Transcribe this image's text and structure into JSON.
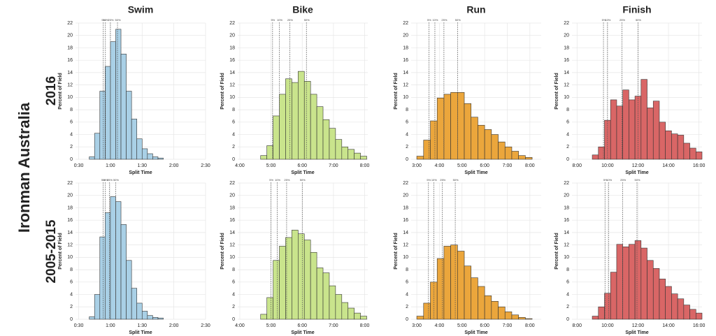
{
  "title": "Ironman Australia",
  "rows": [
    "2016",
    "2005-2015"
  ],
  "columns": [
    "Swim",
    "Bike",
    "Run",
    "Finish"
  ],
  "chart_data": [
    {
      "type": "histogram",
      "xlabel": "Split Time",
      "ylabel": "Percent of Field",
      "color": "#a9d0e6",
      "grid": true,
      "bins": [
        40,
        45,
        50,
        55,
        60,
        65,
        70,
        75,
        80,
        85,
        90,
        95,
        100,
        105,
        110
      ],
      "values": [
        0.4,
        4.2,
        11,
        15,
        19,
        21,
        17,
        11,
        6.5,
        3.3,
        1.7,
        0.9,
        0.4,
        0.2
      ],
      "xlim": [
        27,
        150
      ],
      "ylim": [
        0,
        22
      ],
      "xticks": [
        {
          "value": 30,
          "label": "0:30"
        },
        {
          "value": 60,
          "label": "1:00"
        },
        {
          "value": 90,
          "label": "1:30"
        },
        {
          "value": 120,
          "label": "2:00"
        },
        {
          "value": 150,
          "label": "2:30"
        }
      ],
      "yticks": [
        0,
        2,
        4,
        6,
        8,
        10,
        12,
        14,
        16,
        18,
        20,
        22
      ],
      "percentiles": [
        {
          "label": "5%",
          "value": 53.3
        },
        {
          "label": "10%",
          "value": 55.3
        },
        {
          "label": "25%",
          "value": 60
        },
        {
          "label": "50%",
          "value": 66.7
        }
      ]
    },
    {
      "type": "histogram",
      "xlabel": "Split Time",
      "ylabel": "Percent of Field",
      "color": "#c9e48c",
      "grid": true,
      "bins": [
        280,
        292,
        304,
        316,
        328,
        340,
        352,
        364,
        376,
        388,
        400,
        412,
        424,
        436,
        448,
        460,
        472,
        484
      ],
      "values": [
        0.6,
        2.2,
        7,
        10.5,
        13,
        12.4,
        14.2,
        12.6,
        10.5,
        8.5,
        6.4,
        5,
        3.2,
        2,
        1.6,
        1,
        0.5
      ],
      "xlim": [
        236,
        486
      ],
      "ylim": [
        0,
        22
      ],
      "xticks": [
        {
          "value": 240,
          "label": "4:00"
        },
        {
          "value": 300,
          "label": "5:00"
        },
        {
          "value": 360,
          "label": "6:00"
        },
        {
          "value": 420,
          "label": "7:00"
        },
        {
          "value": 480,
          "label": "8:00"
        }
      ],
      "yticks": [
        0,
        2,
        4,
        6,
        8,
        10,
        12,
        14,
        16,
        18,
        20,
        22
      ],
      "percentiles": [
        {
          "label": "5%",
          "value": 303
        },
        {
          "label": "10%",
          "value": 316
        },
        {
          "label": "25%",
          "value": 336
        },
        {
          "label": "50%",
          "value": 368
        }
      ]
    },
    {
      "type": "histogram",
      "xlabel": "Split Time",
      "ylabel": "Percent of Field",
      "color": "#eba63c",
      "grid": true,
      "bins": [
        180,
        198,
        216,
        234,
        252,
        270,
        288,
        306,
        324,
        342,
        360,
        378,
        396,
        414,
        432,
        450,
        468,
        486
      ],
      "values": [
        0.5,
        3.1,
        6.2,
        9.9,
        10.5,
        10.8,
        10.8,
        9,
        6.8,
        5.5,
        4.8,
        4,
        2.8,
        2,
        1.3,
        0.6,
        0.3
      ],
      "xlim": [
        165,
        510
      ],
      "ylim": [
        0,
        22
      ],
      "xticks": [
        {
          "value": 180,
          "label": "3:00"
        },
        {
          "value": 240,
          "label": "4:00"
        },
        {
          "value": 300,
          "label": "5:00"
        },
        {
          "value": 360,
          "label": "6:00"
        },
        {
          "value": 420,
          "label": "7:00"
        },
        {
          "value": 480,
          "label": "8:00"
        }
      ],
      "yticks": [
        0,
        2,
        4,
        6,
        8,
        10,
        12,
        14,
        16,
        18,
        20,
        22
      ],
      "percentiles": [
        {
          "label": "5%",
          "value": 212
        },
        {
          "label": "10%",
          "value": 228
        },
        {
          "label": "25%",
          "value": 252
        },
        {
          "label": "50%",
          "value": 288
        }
      ]
    },
    {
      "type": "histogram",
      "xlabel": "Split Time",
      "ylabel": "Percent of Field",
      "color": "#d96666",
      "grid": true,
      "bins": [
        540,
        564,
        588,
        612,
        636,
        660,
        684,
        708,
        732,
        756,
        780,
        804,
        828,
        852,
        876,
        900,
        924,
        948,
        972
      ],
      "values": [
        0.7,
        2,
        6.3,
        9.6,
        8.6,
        11.2,
        9.6,
        10.2,
        12.9,
        8.3,
        9.4,
        6,
        4.6,
        4.1,
        3.9,
        2.6,
        1.8,
        1.2
      ],
      "xlim": [
        460,
        972
      ],
      "ylim": [
        0,
        22
      ],
      "xticks": [
        {
          "value": 480,
          "label": "8:00"
        },
        {
          "value": 600,
          "label": "10:00"
        },
        {
          "value": 720,
          "label": "12:00"
        },
        {
          "value": 840,
          "label": "14:00"
        },
        {
          "value": 960,
          "label": "16:00"
        }
      ],
      "yticks": [
        0,
        2,
        4,
        6,
        8,
        10,
        12,
        14,
        16,
        18,
        20,
        22
      ],
      "percentiles": [
        {
          "label": "5%",
          "value": 584
        },
        {
          "label": "10%",
          "value": 600
        },
        {
          "label": "25%",
          "value": 657
        },
        {
          "label": "50%",
          "value": 720
        }
      ]
    },
    {
      "type": "histogram",
      "xlabel": "Split Time",
      "ylabel": "Percent of Field",
      "color": "#a9d0e6",
      "grid": true,
      "bins": [
        40,
        45,
        50,
        55,
        60,
        65,
        70,
        75,
        80,
        85,
        90,
        95,
        100,
        105,
        110
      ],
      "values": [
        0.4,
        4,
        13.3,
        17.2,
        19.8,
        19,
        15.3,
        9.5,
        5,
        2.6,
        1.3,
        0.6,
        0.3,
        0.2
      ],
      "xlim": [
        27,
        150
      ],
      "ylim": [
        0,
        22
      ],
      "xticks": [
        {
          "value": 30,
          "label": "0:30"
        },
        {
          "value": 60,
          "label": "1:00"
        },
        {
          "value": 90,
          "label": "1:30"
        },
        {
          "value": 120,
          "label": "2:00"
        },
        {
          "value": 150,
          "label": "2:30"
        }
      ],
      "yticks": [
        0,
        2,
        4,
        6,
        8,
        10,
        12,
        14,
        16,
        18,
        20,
        22
      ],
      "percentiles": [
        {
          "label": "5%",
          "value": 53
        },
        {
          "label": "10%",
          "value": 55
        },
        {
          "label": "25%",
          "value": 59
        },
        {
          "label": "50%",
          "value": 65
        }
      ]
    },
    {
      "type": "histogram",
      "xlabel": "Split Time",
      "ylabel": "Percent of Field",
      "color": "#c9e48c",
      "grid": true,
      "bins": [
        280,
        292,
        304,
        316,
        328,
        340,
        352,
        364,
        376,
        388,
        400,
        412,
        424,
        436,
        448,
        460,
        472,
        484
      ],
      "values": [
        0.8,
        3.5,
        9.5,
        11.8,
        13.2,
        14.4,
        13.8,
        12.8,
        10.8,
        8.3,
        7.5,
        5.4,
        4,
        2.7,
        1.8,
        1,
        0.5
      ],
      "xlim": [
        236,
        486
      ],
      "ylim": [
        0,
        22
      ],
      "xticks": [
        {
          "value": 240,
          "label": "4:00"
        },
        {
          "value": 300,
          "label": "5:00"
        },
        {
          "value": 360,
          "label": "6:00"
        },
        {
          "value": 420,
          "label": "7:00"
        },
        {
          "value": 480,
          "label": "8:00"
        }
      ],
      "yticks": [
        0,
        2,
        4,
        6,
        8,
        10,
        12,
        14,
        16,
        18,
        20,
        22
      ],
      "percentiles": [
        {
          "label": "5%",
          "value": 300
        },
        {
          "label": "10%",
          "value": 312
        },
        {
          "label": "25%",
          "value": 330
        },
        {
          "label": "50%",
          "value": 360
        }
      ]
    },
    {
      "type": "histogram",
      "xlabel": "Split Time",
      "ylabel": "Percent of Field",
      "color": "#eba63c",
      "grid": true,
      "bins": [
        180,
        198,
        216,
        234,
        252,
        270,
        288,
        306,
        324,
        342,
        360,
        378,
        396,
        414,
        432,
        450,
        468,
        486
      ],
      "values": [
        0.5,
        2.6,
        6,
        9.8,
        11.8,
        12,
        11,
        8.6,
        6.7,
        5.3,
        3.8,
        2.9,
        2,
        1.2,
        0.7,
        0.3,
        0.1
      ],
      "xlim": [
        165,
        510
      ],
      "ylim": [
        0,
        22
      ],
      "xticks": [
        {
          "value": 180,
          "label": "3:00"
        },
        {
          "value": 240,
          "label": "4:00"
        },
        {
          "value": 300,
          "label": "5:00"
        },
        {
          "value": 360,
          "label": "6:00"
        },
        {
          "value": 420,
          "label": "7:00"
        },
        {
          "value": 480,
          "label": "8:00"
        }
      ],
      "yticks": [
        0,
        2,
        4,
        6,
        8,
        10,
        12,
        14,
        16,
        18,
        20,
        22
      ],
      "percentiles": [
        {
          "label": "5%",
          "value": 211
        },
        {
          "label": "10%",
          "value": 225
        },
        {
          "label": "25%",
          "value": 248
        },
        {
          "label": "50%",
          "value": 282
        }
      ]
    },
    {
      "type": "histogram",
      "xlabel": "Split Time",
      "ylabel": "Percent of Field",
      "color": "#d96666",
      "grid": true,
      "bins": [
        540,
        564,
        588,
        612,
        636,
        660,
        684,
        708,
        732,
        756,
        780,
        804,
        828,
        852,
        876,
        900,
        924,
        948,
        972
      ],
      "values": [
        0.5,
        2,
        4.2,
        7.6,
        12.1,
        11.7,
        12.1,
        12.7,
        11.5,
        9.5,
        8.2,
        6.5,
        5.3,
        4.1,
        3.3,
        2.3,
        1.6,
        1
      ],
      "xlim": [
        460,
        972
      ],
      "ylim": [
        0,
        22
      ],
      "xticks": [
        {
          "value": 480,
          "label": "8:00"
        },
        {
          "value": 600,
          "label": "10:00"
        },
        {
          "value": 720,
          "label": "12:00"
        },
        {
          "value": 840,
          "label": "14:00"
        },
        {
          "value": 960,
          "label": "16:00"
        }
      ],
      "yticks": [
        0,
        2,
        4,
        6,
        8,
        10,
        12,
        14,
        16,
        18,
        20,
        22
      ],
      "percentiles": [
        {
          "label": "5%",
          "value": 590
        },
        {
          "label": "10%",
          "value": 605
        },
        {
          "label": "25%",
          "value": 660
        },
        {
          "label": "50%",
          "value": 716
        }
      ]
    }
  ]
}
